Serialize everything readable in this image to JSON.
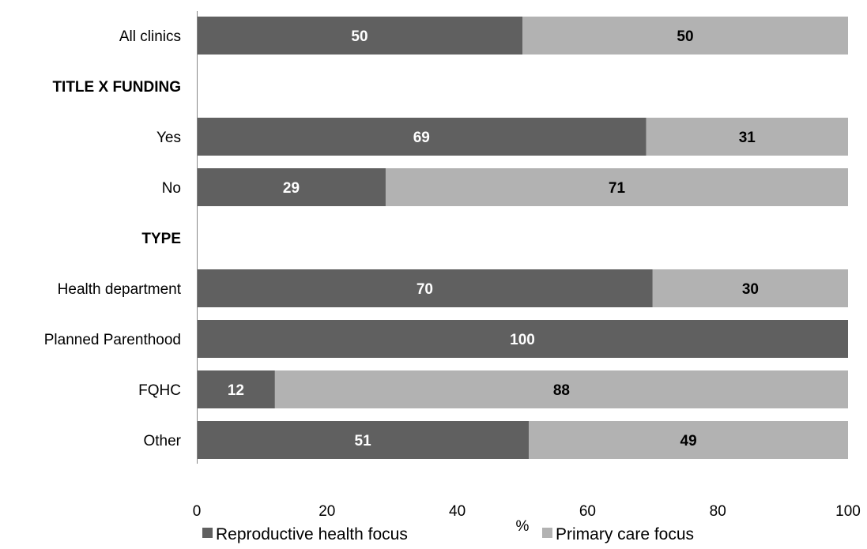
{
  "chart_data": {
    "type": "bar",
    "orientation": "horizontal",
    "stacked": true,
    "categories": [
      "All clinics",
      "TITLE X FUNDING",
      "Yes",
      "No",
      "TYPE",
      "Health department",
      "Planned Parenthood",
      "FQHC",
      "Other"
    ],
    "group_headers": [
      "TITLE X FUNDING",
      "TYPE"
    ],
    "series": [
      {
        "name": "Reproductive health focus",
        "color": "#606060",
        "values": [
          50,
          null,
          69,
          29,
          null,
          70,
          100,
          12,
          51
        ]
      },
      {
        "name": "Primary care focus",
        "color": "#b2b2b2",
        "values": [
          50,
          null,
          31,
          71,
          null,
          30,
          null,
          88,
          49
        ]
      }
    ],
    "xlabel": "%",
    "xlim": [
      0,
      100
    ],
    "xticks": [
      0,
      20,
      40,
      60,
      80,
      100
    ],
    "legend_position": "bottom",
    "grid": false
  }
}
